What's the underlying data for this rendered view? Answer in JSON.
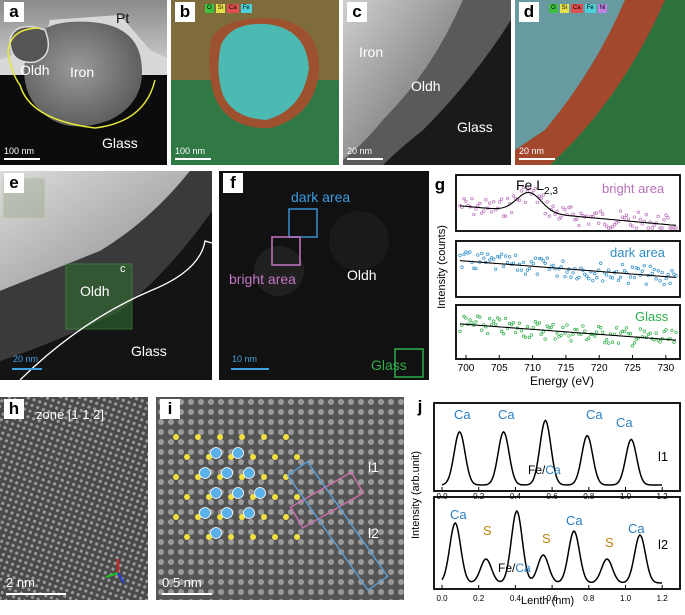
{
  "panel_a": {
    "label": "a",
    "texts": {
      "pt": "Pt",
      "oldh": "Oldh",
      "iron": "Iron",
      "glass": "Glass"
    },
    "scalebar": "100 nm"
  },
  "panel_b": {
    "label": "b",
    "legend": [
      {
        "name": "O",
        "color": "#3fbf3f"
      },
      {
        "name": "Si",
        "color": "#e8e04a"
      },
      {
        "name": "Ca",
        "color": "#e05050"
      },
      {
        "name": "Fe",
        "color": "#4fd0d8"
      }
    ],
    "scalebar": "100 nm"
  },
  "panel_c": {
    "label": "c",
    "texts": {
      "iron": "Iron",
      "oldh": "Oldh",
      "glass": "Glass"
    },
    "scalebar": "20 nm"
  },
  "panel_d": {
    "label": "d",
    "legend": [
      {
        "name": "O",
        "color": "#3fbf3f"
      },
      {
        "name": "Si",
        "color": "#e8e04a"
      },
      {
        "name": "Ca",
        "color": "#e05050"
      },
      {
        "name": "Fe",
        "color": "#4fd0d8"
      },
      {
        "name": "Ni",
        "color": "#c080e0"
      }
    ],
    "scalebar": "20 nm"
  },
  "panel_e": {
    "label": "e",
    "texts": {
      "c": "c",
      "oldh": "Oldh",
      "glass": "Glass"
    },
    "scalebar": "20 nm"
  },
  "panel_f": {
    "label": "f",
    "texts": {
      "dark": "dark area",
      "bright": "bright area",
      "oldh": "Oldh",
      "glass": "Glass"
    },
    "scalebar": "10 nm"
  },
  "panel_g": {
    "label": "g",
    "ylabel": "Intensity (counts)",
    "xlabel": "Energy (eV)",
    "peak_label": "Fe L",
    "peak_sub": "2,3",
    "xticks": [
      "700",
      "705",
      "710",
      "715",
      "720",
      "725",
      "730"
    ],
    "spectra": [
      {
        "name": "bright area",
        "color": "#b86fb8"
      },
      {
        "name": "dark area",
        "color": "#2e8fc7"
      },
      {
        "name": "Glass",
        "color": "#2fae4a"
      }
    ]
  },
  "panel_h": {
    "label": "h",
    "zone": "zone [1 1 2]",
    "scalebar": "2 nm"
  },
  "panel_i": {
    "label": "i",
    "l1": "l1",
    "l2": "l2",
    "scalebar": "0.5 nm"
  },
  "panel_j": {
    "label": "j",
    "ylabel": "Intensity (arb.unit)",
    "xlabel": "Lenth (nm)",
    "xticks": [
      "0.0",
      "0.2",
      "0.4",
      "0.6",
      "0.8",
      "1.0",
      "1.2"
    ],
    "top": {
      "name": "l1",
      "labels": [
        "Ca",
        "Ca",
        "Ca",
        "Ca"
      ],
      "mixed": {
        "fe": "Fe",
        "slash": "/",
        "ca": "Ca"
      }
    },
    "bottom": {
      "name": "l2",
      "ca_labels": [
        "Ca",
        "Ca",
        "Ca"
      ],
      "s_labels": [
        "S",
        "S",
        "S"
      ],
      "mixed": {
        "fe": "Fe",
        "slash": "/",
        "ca": "Ca"
      }
    },
    "ca_color": "#2a7fc1",
    "s_color": "#b8860b"
  }
}
